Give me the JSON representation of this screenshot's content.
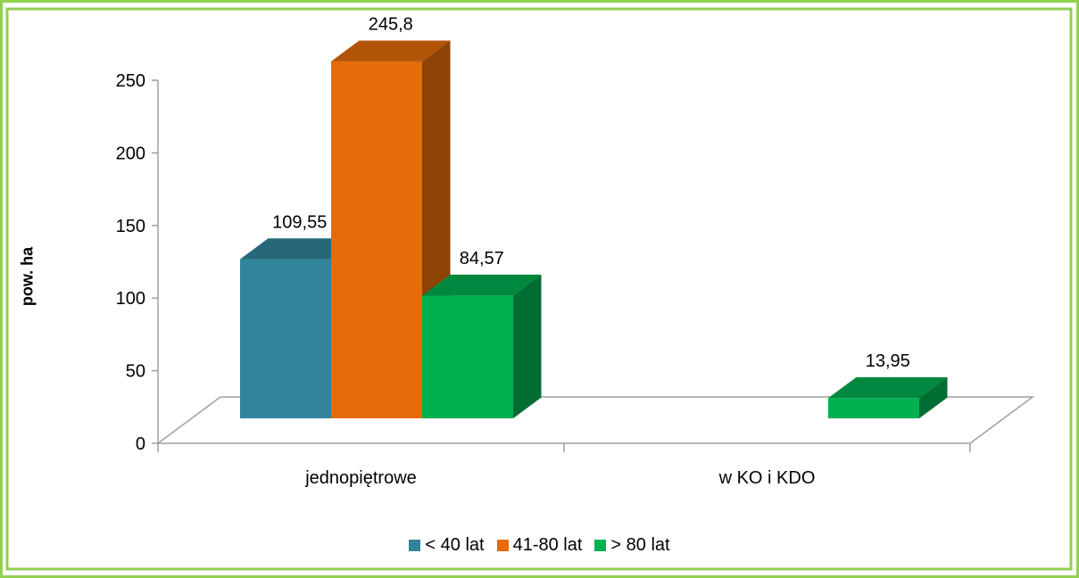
{
  "chart_data": {
    "type": "bar",
    "ylabel": "pow. ha",
    "ylim": [
      0,
      250
    ],
    "yticks": [
      "0",
      "50",
      "100",
      "150",
      "200",
      "250"
    ],
    "categories": [
      "jednopiętrowe",
      "w KO i KDO"
    ],
    "series": [
      {
        "name": "< 40 lat",
        "color": "#31849B",
        "values": [
          109.55,
          null
        ],
        "labels": [
          "109,55",
          ""
        ]
      },
      {
        "name": "41-80 lat",
        "color": "#E46C0A",
        "values": [
          245.8,
          null
        ],
        "labels": [
          "245,8",
          ""
        ]
      },
      {
        "name": "> 80 lat",
        "color": "#00B050",
        "values": [
          84.57,
          13.95
        ],
        "labels": [
          "84,57",
          "13,95"
        ]
      }
    ],
    "legend_position": "bottom",
    "frame_color": "#92D050"
  }
}
